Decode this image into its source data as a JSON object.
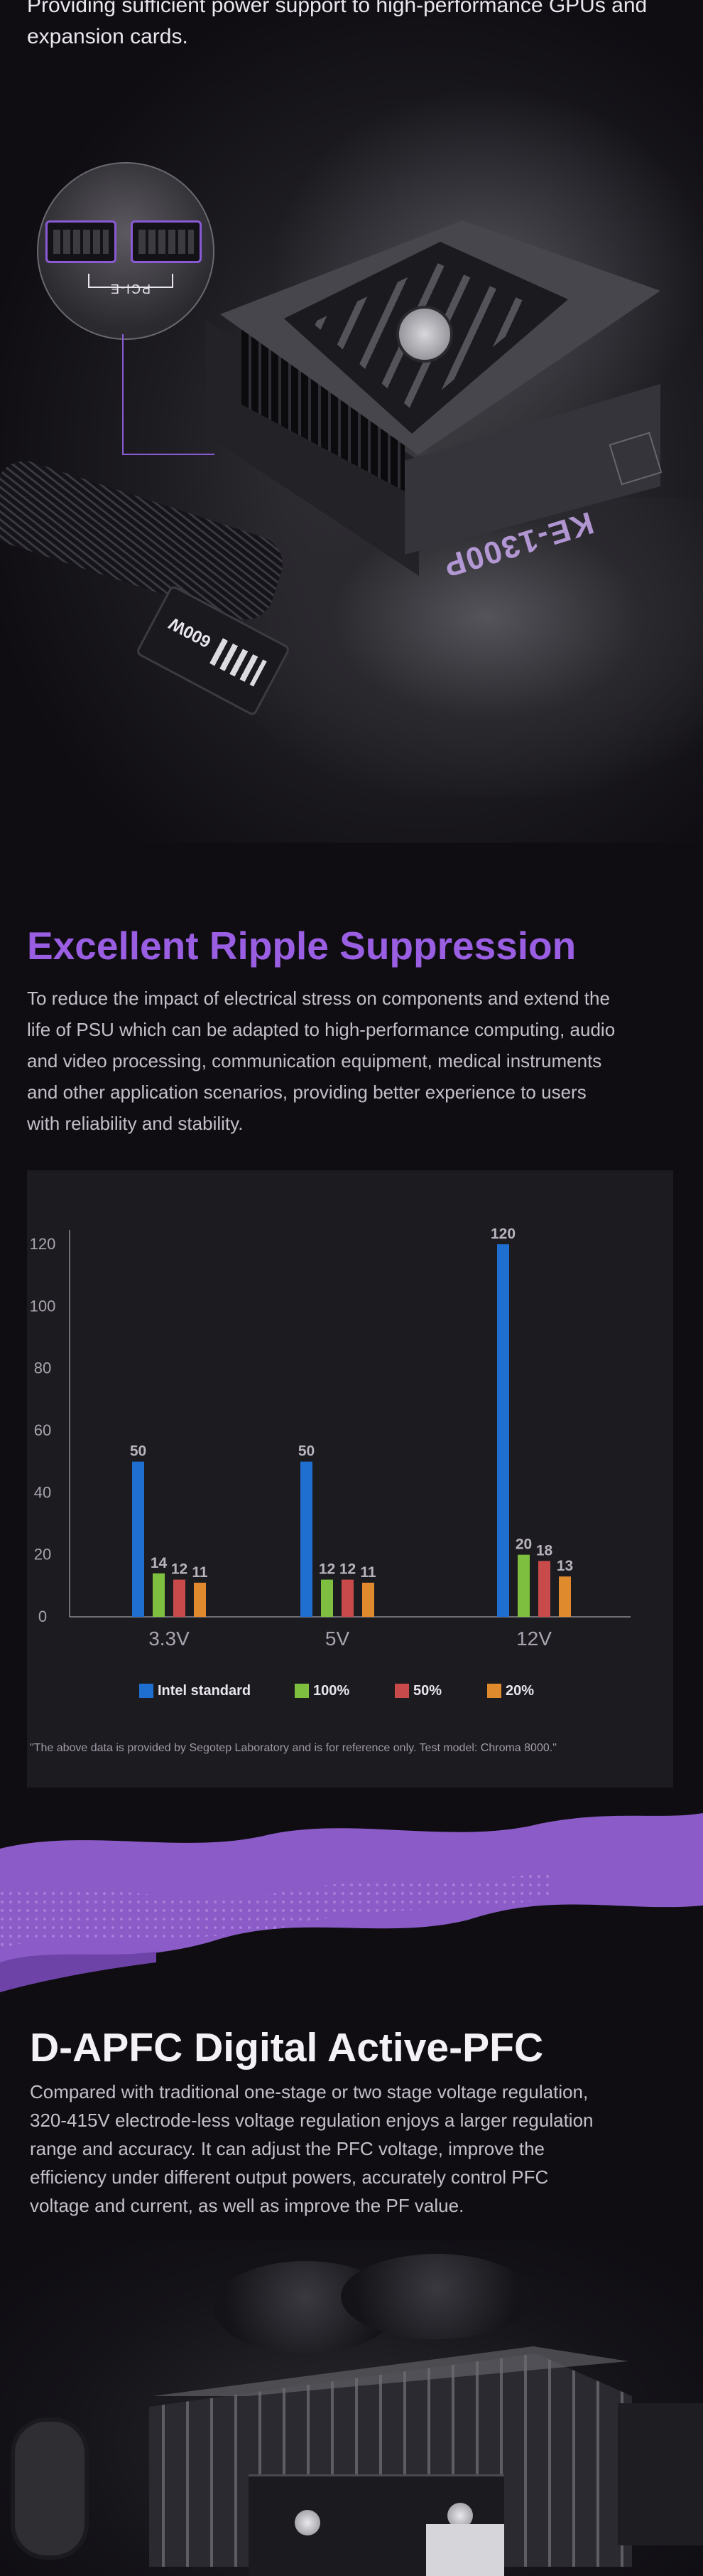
{
  "hero": {
    "top_text": "Providing sufficient power support to high-performance GPUs and expansion cards.",
    "zoom_label": "PCI-E",
    "psu_model": "KE-1300P",
    "plug_label": "600W"
  },
  "ripple": {
    "title": "Excellent Ripple Suppression",
    "text": "To reduce the impact of electrical stress on components and extend the life of PSU which can be adapted to high-performance computing, audio and video processing, communication equipment, medical instruments and other application scenarios, providing better experience to users with reliability and stability.",
    "note": "\"The above data is provided by Segotep Laboratory and is for reference only. Test model: Chroma 8000.\""
  },
  "chart_data": {
    "type": "bar",
    "title": "",
    "xlabel": "",
    "ylabel": "",
    "categories": [
      "3.3V",
      "5V",
      "12V"
    ],
    "ylim": [
      0,
      120
    ],
    "yticks": [
      0,
      20,
      40,
      60,
      80,
      100,
      120
    ],
    "grid": false,
    "legend_position": "bottom",
    "series": [
      {
        "name": "Intel standard",
        "color": "#1f6fd0",
        "values": [
          50,
          50,
          120
        ]
      },
      {
        "name": "100%",
        "color": "#7fbf3f",
        "values": [
          14,
          12,
          20
        ]
      },
      {
        "name": "50%",
        "color": "#c84a4a",
        "values": [
          12,
          12,
          18
        ]
      },
      {
        "name": "20%",
        "color": "#e08a2e",
        "values": [
          11,
          11,
          13
        ]
      }
    ]
  },
  "apfc": {
    "title": "D-APFC Digital Active-PFC",
    "text": "Compared with traditional one-stage or two stage voltage regulation, 320-415V electrode-less voltage regulation enjoys a larger regulation range and accuracy. It can adjust the PFC voltage, improve the efficiency under different output powers, accurately control PFC voltage and current, as well as improve the PF value."
  },
  "colors": {
    "accent_purple": "#9a5ee3",
    "background": "#0f0d12",
    "chart_bg": "#1c1b20"
  }
}
